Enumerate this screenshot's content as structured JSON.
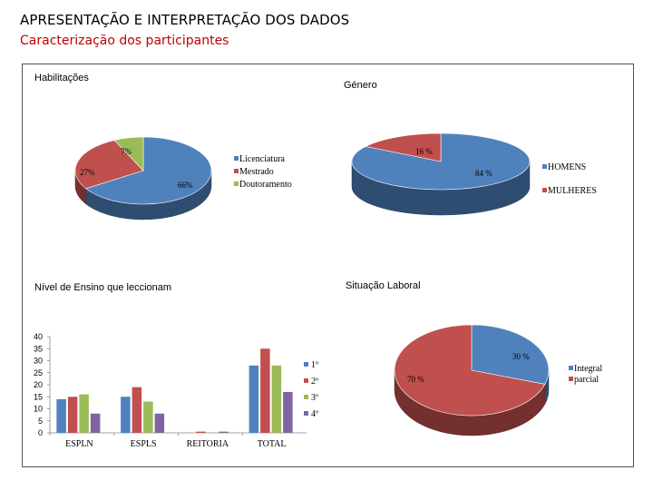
{
  "page": {
    "title": "APRESENTAÇÃO E INTERPRETAÇÃO DOS DADOS",
    "subtitle": "Caracterização dos participantes"
  },
  "colors": {
    "blue": "#4f81bd",
    "red": "#c0504d",
    "green": "#9bbb59",
    "purple": "#8064a2",
    "subtitle": "#c00000"
  },
  "chart_data": [
    {
      "type": "pie",
      "title": "Habilitações",
      "categories": [
        "Licenciatura",
        "Mestrado",
        "Doutoramento"
      ],
      "values": [
        66,
        27,
        7
      ],
      "labels": [
        "66%",
        "27%",
        "7%"
      ],
      "legend": "right"
    },
    {
      "type": "pie",
      "title": "Género",
      "categories": [
        "HOMENS",
        "MULHERES"
      ],
      "values": [
        84,
        16
      ],
      "labels": [
        "84 %",
        "16 %"
      ],
      "legend": "right"
    },
    {
      "type": "bar",
      "title": "Nível de Ensino que leccionam",
      "categories": [
        "ESPLN",
        "ESPLS",
        "REITORIA",
        "TOTAL"
      ],
      "series": [
        {
          "name": "1º",
          "values": [
            14,
            15,
            0,
            28
          ]
        },
        {
          "name": "2º",
          "values": [
            15,
            19,
            0.5,
            35
          ]
        },
        {
          "name": "3º",
          "values": [
            16,
            13,
            0,
            28
          ]
        },
        {
          "name": "4º",
          "values": [
            8,
            8,
            0.5,
            17
          ]
        }
      ],
      "ylim": [
        0,
        40
      ],
      "yticks": [
        "0",
        "5",
        "10",
        "15",
        "20",
        "25",
        "30",
        "35",
        "40"
      ],
      "grid": false,
      "legend": "right"
    },
    {
      "type": "pie",
      "title": "Situação Laboral",
      "categories": [
        "Integral",
        "parcial"
      ],
      "values": [
        30,
        70
      ],
      "labels": [
        "30 %",
        "70 %"
      ],
      "legend": "right"
    }
  ]
}
